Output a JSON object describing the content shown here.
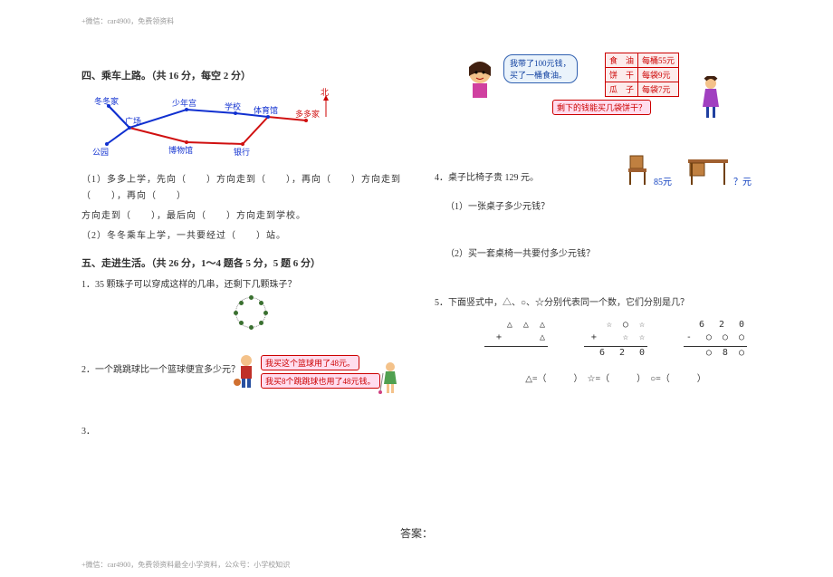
{
  "header": "+微信：car4900，免费领资料",
  "footer": "+微信：car4900，免费领资料最全小学资料，公众号：小学校知识",
  "left": {
    "section4_title": "四、乘车上路。（共 16 分，每空 2 分）",
    "route": {
      "nodes": [
        "冬冬家",
        "广场",
        "公园",
        "少年宫",
        "博物馆",
        "学校",
        "体育馆",
        "银行",
        "多多家"
      ],
      "north": "北",
      "colors": {
        "label": "#1030d0",
        "line_blue": "#1030d0",
        "line_red": "#d01010"
      }
    },
    "q4_1": "（1）多多上学，先向（　　）方向走到（　　），再向（　　）方向走到（　　），再向（　　）",
    "q4_1b": "方向走到（　　），最后向（　　）方向走到学校。",
    "q4_2": "（2）冬冬乘车上学，一共要经过（　　）站。",
    "section5_title": "五、走进生活。（共 26 分，1～4 题各 5 分，5 题 6 分）",
    "q5_1": "1．35 颗珠子可以穿成这样的几串，还剩下几颗珠子？",
    "q5_2": "2．一个跳跳球比一个篮球便宜多少元？",
    "bubble_basketball": "我买这个篮球用了48元。",
    "bubble_jump": "我买8个跳跳球也用了48元钱。",
    "q5_3": "3．"
  },
  "right": {
    "bubble_100": "我带了100元钱，\n买了一桶食油。",
    "price_table": {
      "rows": [
        [
          "食　油",
          "每桶55元"
        ],
        [
          "饼　干",
          "每袋9元"
        ],
        [
          "瓜　子",
          "每袋7元"
        ]
      ]
    },
    "bubble_q": "剩下的钱能买几袋饼干？",
    "q4": "4．桌子比椅子贵 129 元。",
    "chair_price": "85元",
    "desk_price": "？元",
    "q4_1": "（1）一张桌子多少元钱？",
    "q4_2": "（2）买一套桌椅一共要付多少元钱？",
    "q5": "5．下面竖式中，△、○、☆分别代表同一个数，它们分别是几？",
    "vmath": [
      {
        "l1": "△ △ △",
        "l2": "+　　　△",
        "l3": ""
      },
      {
        "l1": "☆ ○ ☆",
        "l2": "+　　☆ ☆",
        "l3": "6　2　0"
      },
      {
        "l1": "6　2　0",
        "l2": "-　○ ○ ○",
        "l3": "○ 8 ○"
      }
    ],
    "answers": "△=（　　　）　☆=（　　　）　○=（　　　）"
  },
  "answer_heading": "答案："
}
